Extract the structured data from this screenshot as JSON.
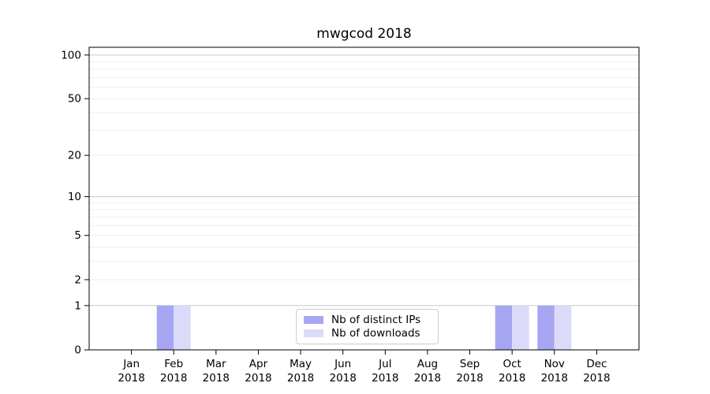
{
  "page": {
    "background": "#ffffff"
  },
  "chart_data": {
    "type": "bar",
    "title": "mwgcod 2018",
    "x_tick_labels": [
      [
        "Jan",
        "2018"
      ],
      [
        "Feb",
        "2018"
      ],
      [
        "Mar",
        "2018"
      ],
      [
        "Apr",
        "2018"
      ],
      [
        "May",
        "2018"
      ],
      [
        "Jun",
        "2018"
      ],
      [
        "Jul",
        "2018"
      ],
      [
        "Aug",
        "2018"
      ],
      [
        "Sep",
        "2018"
      ],
      [
        "Oct",
        "2018"
      ],
      [
        "Nov",
        "2018"
      ],
      [
        "Dec",
        "2018"
      ]
    ],
    "series": [
      {
        "name": "Nb of distinct IPs",
        "color": "#a6a6f3",
        "values": [
          0,
          1,
          0,
          0,
          0,
          0,
          0,
          0,
          0,
          1,
          1,
          0
        ]
      },
      {
        "name": "Nb of downloads",
        "color": "#dbdbf9",
        "values": [
          0,
          1,
          0,
          0,
          0,
          0,
          0,
          0,
          0,
          1,
          1,
          0
        ]
      }
    ],
    "yscale": "log1p",
    "ylim": [
      0,
      113
    ],
    "y_ticks": [
      0,
      1,
      2,
      5,
      10,
      20,
      50,
      100
    ],
    "gridlines": {
      "major": [
        1,
        10,
        100
      ],
      "minor": [
        2,
        3,
        4,
        5,
        6,
        7,
        8,
        9,
        20,
        30,
        40,
        50,
        60,
        70,
        80,
        90
      ]
    },
    "legend": {
      "position": "lower center"
    },
    "grid": true
  },
  "colors": {
    "major_grid": "#c9c9c9",
    "minor_grid": "#ededed",
    "axis": "#000000",
    "legend_border": "#cccccc"
  }
}
